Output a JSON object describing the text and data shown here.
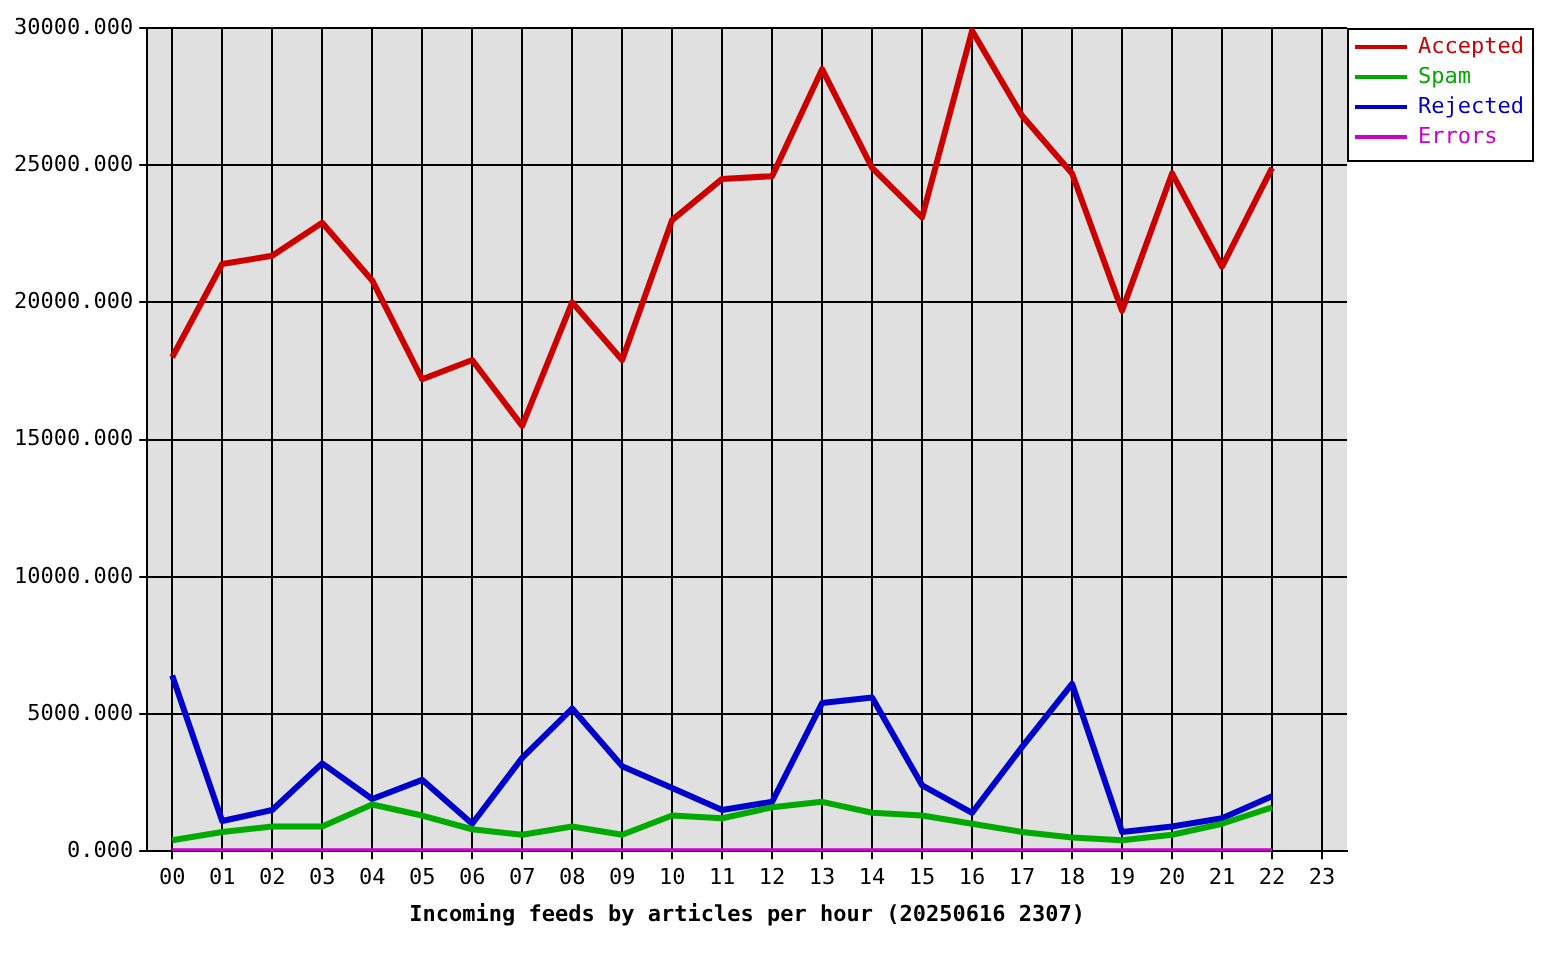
{
  "chart_data": {
    "type": "line",
    "xlabel": "Incoming feeds by articles per hour (20250616 2307)",
    "categories": [
      "00",
      "01",
      "02",
      "03",
      "04",
      "05",
      "06",
      "07",
      "08",
      "09",
      "10",
      "11",
      "12",
      "13",
      "14",
      "15",
      "16",
      "17",
      "18",
      "19",
      "20",
      "21",
      "22",
      "23"
    ],
    "series": [
      {
        "name": "Accepted",
        "color": "#cc0000",
        "values": [
          18000,
          21400,
          21700,
          22900,
          20800,
          17200,
          17900,
          15500,
          20000,
          17900,
          23000,
          24500,
          24600,
          28500,
          24900,
          23100,
          29900,
          26800,
          24700,
          19700,
          24700,
          21300,
          24900,
          null
        ]
      },
      {
        "name": "Spam",
        "color": "#00aa00",
        "values": [
          400,
          700,
          900,
          900,
          1700,
          1300,
          800,
          600,
          900,
          600,
          1300,
          1200,
          1600,
          1800,
          1400,
          1300,
          1000,
          700,
          500,
          400,
          600,
          1000,
          1600,
          null
        ]
      },
      {
        "name": "Rejected",
        "color": "#0000cc",
        "values": [
          6400,
          1100,
          1500,
          3200,
          1900,
          2600,
          1000,
          3400,
          5200,
          3100,
          2300,
          1500,
          1800,
          5400,
          5600,
          2400,
          1400,
          3800,
          6100,
          700,
          900,
          1200,
          2000,
          null
        ]
      },
      {
        "name": "Errors",
        "color": "#cc00cc",
        "values": [
          0,
          0,
          0,
          0,
          0,
          0,
          0,
          0,
          0,
          0,
          0,
          0,
          0,
          0,
          0,
          0,
          0,
          0,
          0,
          0,
          0,
          0,
          0,
          null
        ]
      }
    ],
    "ylim": [
      0,
      30000
    ],
    "yticks": [
      {
        "value": 0,
        "label": "0.000"
      },
      {
        "value": 5000,
        "label": "5000.000"
      },
      {
        "value": 10000,
        "label": "10000.000"
      },
      {
        "value": 15000,
        "label": "15000.000"
      },
      {
        "value": 20000,
        "label": "20000.000"
      },
      {
        "value": 25000,
        "label": "25000.000"
      },
      {
        "value": 30000,
        "label": "30000.000"
      }
    ],
    "grid": true,
    "legend": "top right",
    "marker": "none",
    "line_style": "solid"
  }
}
